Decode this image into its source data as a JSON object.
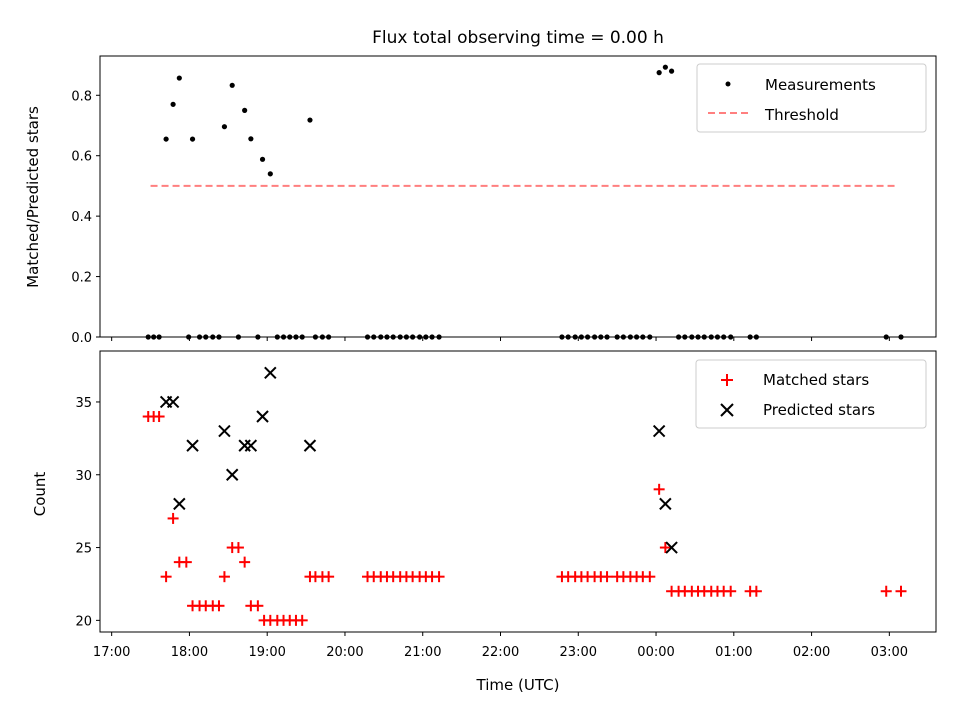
{
  "chart_data": [
    {
      "type": "scatter",
      "title": "Flux total observing time = 0.00 h",
      "xlabel": "",
      "ylabel": "Matched/Predicted stars",
      "ylim": [
        0,
        0.93
      ],
      "yticks": [
        "0.0",
        "0.2",
        "0.4",
        "0.6",
        "0.8"
      ],
      "ytick_values": [
        0,
        0.2,
        0.4,
        0.6,
        0.8
      ],
      "legend_position": "top-right",
      "series": [
        {
          "name": "Measurements",
          "color": "#000000",
          "marker": "dot",
          "points": [
            [
              17.47,
              0
            ],
            [
              17.54,
              0
            ],
            [
              17.61,
              0
            ],
            [
              17.7,
              0.655
            ],
            [
              17.79,
              0.77
            ],
            [
              17.87,
              0.857
            ],
            [
              18.04,
              0.655
            ],
            [
              17.99,
              0
            ],
            [
              18.13,
              0
            ],
            [
              18.21,
              0
            ],
            [
              18.3,
              0
            ],
            [
              18.38,
              0
            ],
            [
              18.45,
              0.696
            ],
            [
              18.55,
              0.833
            ],
            [
              18.63,
              0
            ],
            [
              18.71,
              0.75
            ],
            [
              18.79,
              0.656
            ],
            [
              18.88,
              0
            ],
            [
              18.94,
              0.588
            ],
            [
              19.04,
              0.54
            ],
            [
              19.13,
              0
            ],
            [
              19.21,
              0
            ],
            [
              19.29,
              0
            ],
            [
              19.37,
              0
            ],
            [
              19.45,
              0
            ],
            [
              19.55,
              0.718
            ],
            [
              19.62,
              0
            ],
            [
              19.71,
              0
            ],
            [
              19.79,
              0
            ],
            [
              20.29,
              0
            ],
            [
              20.37,
              0
            ],
            [
              20.46,
              0
            ],
            [
              20.54,
              0
            ],
            [
              20.62,
              0
            ],
            [
              20.71,
              0
            ],
            [
              20.79,
              0
            ],
            [
              20.87,
              0
            ],
            [
              20.96,
              0
            ],
            [
              21.04,
              0
            ],
            [
              21.12,
              0
            ],
            [
              21.21,
              0
            ],
            [
              22.79,
              0
            ],
            [
              22.87,
              0
            ],
            [
              22.96,
              0
            ],
            [
              23.04,
              0
            ],
            [
              23.12,
              0
            ],
            [
              23.21,
              0
            ],
            [
              23.29,
              0
            ],
            [
              23.37,
              0
            ],
            [
              23.5,
              0
            ],
            [
              23.58,
              0
            ],
            [
              23.67,
              0
            ],
            [
              23.75,
              0
            ],
            [
              23.83,
              0
            ],
            [
              23.92,
              0
            ],
            [
              24.04,
              0.875
            ],
            [
              24.12,
              0.893
            ],
            [
              24.2,
              0.88
            ],
            [
              24.29,
              0
            ],
            [
              24.37,
              0
            ],
            [
              24.46,
              0
            ],
            [
              24.54,
              0
            ],
            [
              24.62,
              0
            ],
            [
              24.71,
              0
            ],
            [
              24.79,
              0
            ],
            [
              24.87,
              0
            ],
            [
              24.96,
              0
            ],
            [
              25.21,
              0
            ],
            [
              25.29,
              0
            ],
            [
              26.96,
              0
            ],
            [
              27.15,
              0
            ]
          ]
        },
        {
          "name": "Threshold",
          "color": "#ff7f7f",
          "style": "dashed",
          "points": [
            [
              17.5,
              0.5
            ],
            [
              27.1,
              0.5
            ]
          ]
        }
      ]
    },
    {
      "type": "scatter",
      "title": "",
      "xlabel": "Time (UTC)",
      "ylabel": "Count",
      "ylim": [
        19.2,
        38.5
      ],
      "yticks": [
        "20",
        "25",
        "30",
        "35"
      ],
      "ytick_values": [
        20,
        25,
        30,
        35
      ],
      "xlim": [
        16.85,
        27.6
      ],
      "xticks": [
        "17:00",
        "18:00",
        "19:00",
        "20:00",
        "21:00",
        "22:00",
        "23:00",
        "00:00",
        "01:00",
        "02:00",
        "03:00"
      ],
      "xtick_values": [
        17,
        18,
        19,
        20,
        21,
        22,
        23,
        24,
        25,
        26,
        27
      ],
      "legend_position": "top-right",
      "series": [
        {
          "name": "Matched stars",
          "color": "#ff0000",
          "marker": "plus",
          "points": [
            [
              17.47,
              34
            ],
            [
              17.54,
              34
            ],
            [
              17.61,
              34
            ],
            [
              17.7,
              23
            ],
            [
              17.79,
              27
            ],
            [
              17.87,
              24
            ],
            [
              17.96,
              24
            ],
            [
              18.04,
              21
            ],
            [
              18.13,
              21
            ],
            [
              18.21,
              21
            ],
            [
              18.3,
              21
            ],
            [
              18.38,
              21
            ],
            [
              18.45,
              23
            ],
            [
              18.55,
              25
            ],
            [
              18.63,
              25
            ],
            [
              18.71,
              24
            ],
            [
              18.79,
              21
            ],
            [
              18.88,
              21
            ],
            [
              18.96,
              20
            ],
            [
              19.04,
              20
            ],
            [
              19.13,
              20
            ],
            [
              19.21,
              20
            ],
            [
              19.29,
              20
            ],
            [
              19.37,
              20
            ],
            [
              19.45,
              20
            ],
            [
              19.55,
              23
            ],
            [
              19.62,
              23
            ],
            [
              19.71,
              23
            ],
            [
              19.79,
              23
            ],
            [
              20.29,
              23
            ],
            [
              20.37,
              23
            ],
            [
              20.46,
              23
            ],
            [
              20.54,
              23
            ],
            [
              20.62,
              23
            ],
            [
              20.71,
              23
            ],
            [
              20.79,
              23
            ],
            [
              20.87,
              23
            ],
            [
              20.96,
              23
            ],
            [
              21.04,
              23
            ],
            [
              21.12,
              23
            ],
            [
              21.21,
              23
            ],
            [
              22.79,
              23
            ],
            [
              22.87,
              23
            ],
            [
              22.96,
              23
            ],
            [
              23.04,
              23
            ],
            [
              23.12,
              23
            ],
            [
              23.21,
              23
            ],
            [
              23.29,
              23
            ],
            [
              23.37,
              23
            ],
            [
              23.5,
              23
            ],
            [
              23.58,
              23
            ],
            [
              23.67,
              23
            ],
            [
              23.75,
              23
            ],
            [
              23.83,
              23
            ],
            [
              23.92,
              23
            ],
            [
              24.04,
              29
            ],
            [
              24.12,
              25
            ],
            [
              24.2,
              22
            ],
            [
              24.29,
              22
            ],
            [
              24.37,
              22
            ],
            [
              24.46,
              22
            ],
            [
              24.54,
              22
            ],
            [
              24.62,
              22
            ],
            [
              24.71,
              22
            ],
            [
              24.79,
              22
            ],
            [
              24.87,
              22
            ],
            [
              24.96,
              22
            ],
            [
              25.21,
              22
            ],
            [
              25.29,
              22
            ],
            [
              26.96,
              22
            ],
            [
              27.15,
              22
            ]
          ]
        },
        {
          "name": "Predicted stars",
          "color": "#000000",
          "marker": "x",
          "points": [
            [
              17.7,
              35
            ],
            [
              17.79,
              35
            ],
            [
              17.87,
              28
            ],
            [
              18.04,
              32
            ],
            [
              18.45,
              33
            ],
            [
              18.55,
              30
            ],
            [
              18.71,
              32
            ],
            [
              18.79,
              32
            ],
            [
              18.94,
              34
            ],
            [
              19.04,
              37
            ],
            [
              19.55,
              32
            ],
            [
              24.04,
              33
            ],
            [
              24.12,
              28
            ],
            [
              24.2,
              25
            ]
          ]
        }
      ]
    }
  ]
}
